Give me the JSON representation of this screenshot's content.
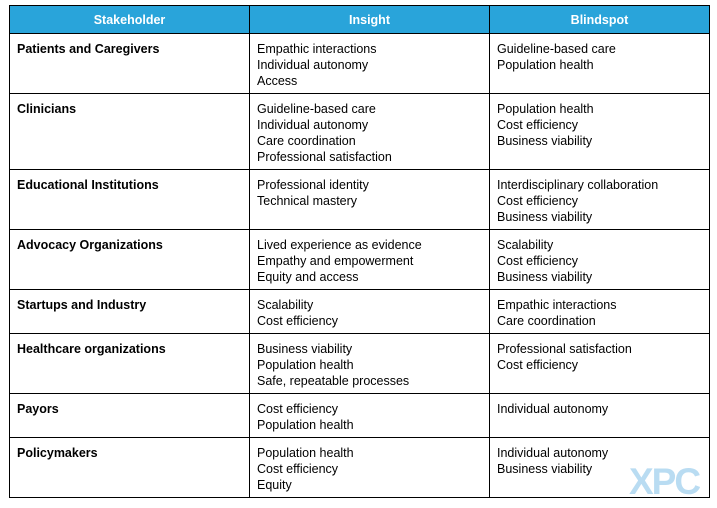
{
  "headers": [
    "Stakeholder",
    "Insight",
    "Blindspot"
  ],
  "rows": [
    {
      "stakeholder": "Patients and Caregivers",
      "insight": [
        "Empathic interactions",
        "Individual autonomy",
        "Access"
      ],
      "blindspot": [
        "Guideline-based care",
        "Population health"
      ]
    },
    {
      "stakeholder": "Clinicians",
      "insight": [
        "Guideline-based care",
        "Individual autonomy",
        "Care coordination",
        "Professional satisfaction"
      ],
      "blindspot": [
        "Population health",
        "Cost efficiency",
        "Business viability"
      ]
    },
    {
      "stakeholder": "Educational Institutions",
      "insight": [
        "Professional identity",
        "Technical mastery"
      ],
      "blindspot": [
        "Interdisciplinary collaboration",
        "Cost efficiency",
        "Business viability"
      ]
    },
    {
      "stakeholder": "Advocacy Organizations",
      "insight": [
        "Lived experience as evidence",
        "Empathy and empowerment",
        "Equity and access"
      ],
      "blindspot": [
        "Scalability",
        "Cost efficiency",
        "Business viability"
      ]
    },
    {
      "stakeholder": "Startups and Industry",
      "insight": [
        "Scalability",
        "Cost efficiency"
      ],
      "blindspot": [
        "Empathic interactions",
        "Care coordination"
      ]
    },
    {
      "stakeholder": "Healthcare organizations",
      "insight": [
        "Business viability",
        "Population health",
        "Safe, repeatable processes"
      ],
      "blindspot": [
        "Professional satisfaction",
        "Cost efficiency"
      ]
    },
    {
      "stakeholder": "Payors",
      "insight": [
        "Cost efficiency",
        "Population health"
      ],
      "blindspot": [
        "Individual autonomy"
      ]
    },
    {
      "stakeholder": "Policymakers",
      "insight": [
        "Population health",
        "Cost efficiency",
        "Equity"
      ],
      "blindspot": [
        "Individual autonomy",
        "Business viability"
      ]
    }
  ],
  "logo": {
    "text": "XPC",
    "color": "#b9dcf2"
  },
  "colors": {
    "header_bg": "#29a4da",
    "header_text": "#ffffff",
    "border": "#000000"
  }
}
